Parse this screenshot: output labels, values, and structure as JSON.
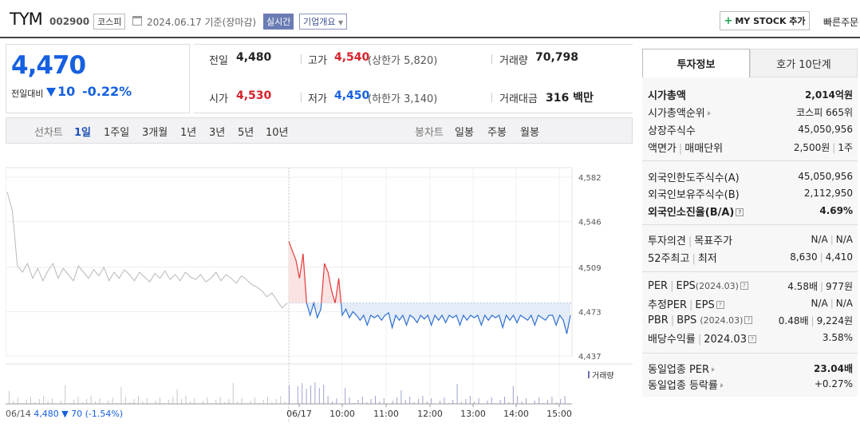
{
  "header": {
    "name": "TYM",
    "code": "002900",
    "market": "코스피",
    "date": "2024.06.17 기준(장마감)",
    "realtime": "실시간",
    "corp_info": "기업개요",
    "my_stock": "MY STOCK 추가",
    "quick_order": "빠른주문"
  },
  "summary": {
    "price": "4,470",
    "compare_label": "전일대비",
    "change": "10",
    "change_pct": "-0.22%"
  },
  "stats": {
    "prev_label": "전일",
    "prev": "4,480",
    "high_label": "고가",
    "high": "4,540",
    "upper_limit": "(상한가 5,820)",
    "volume_label": "거래량",
    "volume": "70,798",
    "open_label": "시가",
    "open": "4,530",
    "low_label": "저가",
    "low": "4,450",
    "lower_limit": "(하한가 3,140)",
    "amount_label": "거래대금",
    "amount": "316",
    "amount_unit": "백만"
  },
  "periods": {
    "line_label": "선차트",
    "line": [
      "1일",
      "1주일",
      "3개월",
      "1년",
      "3년",
      "5년",
      "10년"
    ],
    "candle_label": "봉차트",
    "candle": [
      "일봉",
      "주봉",
      "월봉"
    ]
  },
  "tabs": [
    "투자정보",
    "호가 10단계"
  ],
  "invest": {
    "cap_label": "시가총액",
    "cap": "2,014억원",
    "cap_rank_label": "시가총액순위",
    "cap_rank": "코스피 665위",
    "shares_label": "상장주식수",
    "shares": "45,050,956",
    "par_label": "액면가",
    "unit_label": "매매단위",
    "par": "2,500원",
    "unit": "1주",
    "foreign_limit_label": "외국인한도주식수(A)",
    "foreign_limit": "45,050,956",
    "foreign_hold_label": "외국인보유주식수(B)",
    "foreign_hold": "2,112,950",
    "foreign_ratio_label": "외국인소진율(B/A)",
    "foreign_ratio": "4.69%",
    "opinion_label": "투자의견",
    "target_label": "목표주가",
    "opinion": "N/A",
    "target": "N/A",
    "w52_label": "52주최고",
    "w52_low_label": "최저",
    "w52_high": "8,630",
    "w52_low": "4,410",
    "per_label": "PER",
    "eps_label": "EPS",
    "eps_period": "(2024.03)",
    "per": "4.58배",
    "eps": "977원",
    "est_per_label": "추정PER",
    "est_eps_label": "EPS",
    "est_per": "N/A",
    "est_eps": "N/A",
    "pbr_label": "PBR",
    "bps_label": "BPS",
    "bps_period": "(2024.03)",
    "pbr": "0.48배",
    "bps": "9,224원",
    "div_label": "배당수익률",
    "div_period": "2024.03",
    "div": "3.58%",
    "ind_per_label": "동일업종 PER",
    "ind_per": "23.04배",
    "ind_rate_label": "동일업종 등락률",
    "ind_rate": "+0.27%"
  },
  "chart_data": {
    "type": "line",
    "y_ticks": [
      "4,582",
      "4,546",
      "4,509",
      "4,473",
      "4,437"
    ],
    "ylim": [
      4437,
      4582
    ],
    "reference_price": 4480,
    "x_labels": [
      "06/17",
      "10:00",
      "11:00",
      "12:00",
      "13:00",
      "14:00",
      "15:00"
    ],
    "volume_label": "거래량",
    "prev_day": {
      "label": "06/14",
      "close": "4,480",
      "change": "70",
      "change_pct": "(-1.54%)",
      "points": [
        4570,
        4555,
        4510,
        4505,
        4512,
        4500,
        4508,
        4498,
        4506,
        4512,
        4500,
        4508,
        4503,
        4498,
        4510,
        4505,
        4500,
        4507,
        4502,
        4509,
        4498,
        4505,
        4500,
        4507,
        4503,
        4498,
        4505,
        4501,
        4497,
        4504,
        4500,
        4506,
        4499,
        4503,
        4498,
        4505,
        4501,
        4499,
        4503,
        4497,
        4500,
        4505,
        4498,
        4503,
        4500,
        4496,
        4502,
        4499,
        4495,
        4493,
        4490,
        4485,
        4488,
        4482,
        4476,
        4480
      ]
    },
    "today_points": [
      4530,
      4522,
      4515,
      4500,
      4520,
      4480,
      4470,
      4480,
      4468,
      4475,
      4512,
      4505,
      4490,
      4480,
      4500,
      4470,
      4475,
      4468,
      4473,
      4470,
      4466,
      4470,
      4462,
      4470,
      4468,
      4470,
      4466,
      4470,
      4472,
      4460,
      4470,
      4466,
      4470,
      4462,
      4470,
      4468,
      4464,
      4470,
      4467,
      4470,
      4462,
      4470,
      4466,
      4470,
      4464,
      4470,
      4468,
      4470,
      4462,
      4470,
      4466,
      4470,
      4468,
      4470,
      4462,
      4470,
      4466,
      4470,
      4468,
      4470,
      4460,
      4470,
      4466,
      4470,
      4464,
      4470,
      4468,
      4466,
      4470,
      4462,
      4470,
      4468,
      4466,
      4470,
      4470,
      4462,
      4470,
      4466,
      4455,
      4470
    ]
  }
}
